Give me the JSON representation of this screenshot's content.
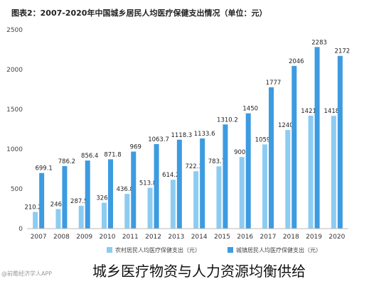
{
  "chart_data": {
    "type": "bar",
    "title": "图表2：2007-2020年中国城乡居民人均医疗保健支出情况（单位：元）",
    "categories": [
      "2007",
      "2008",
      "2009",
      "2010",
      "2011",
      "2012",
      "2013",
      "2014",
      "2015",
      "2016",
      "2017",
      "2018",
      "2019",
      "2020"
    ],
    "series": [
      {
        "name": "城镇居民人均医疗保健支出（元）",
        "values": [
          699.1,
          786.2,
          856.4,
          871.8,
          969,
          1063.7,
          1118.3,
          1133.6,
          1310.2,
          1450,
          1777,
          2046,
          2283,
          2172
        ],
        "labels": [
          "699.1",
          "786.2",
          "856.4",
          "871.8",
          "969",
          "1063.7",
          "1118.3",
          "1133.6",
          "1310.2",
          "1450",
          "1777",
          "2046",
          "2283",
          "2172"
        ],
        "color": "#3d9be0"
      },
      {
        "name": "农村居民人均医疗保健支出（元）",
        "values": [
          210.2,
          246,
          287.5,
          326,
          436.8,
          513.8,
          614.2,
          722.1,
          783.7,
          900,
          1059,
          1240,
          1421,
          1418
        ],
        "labels": [
          "210.2",
          "246",
          "287.5",
          "326",
          "436.8",
          "513.8",
          "614.2",
          "722.1",
          "783.7",
          "900",
          "1059",
          "1240",
          "1421",
          "1418"
        ],
        "color": "#8dccf2"
      }
    ],
    "yticks": [
      0,
      500,
      1000,
      1500,
      2000,
      2500
    ],
    "ylim": [
      0,
      2500
    ],
    "grid": false,
    "legend": "bottom"
  },
  "source": "@前瞻经济学人APP",
  "caption": "城乡医疗物资与人力资源均衡供给"
}
